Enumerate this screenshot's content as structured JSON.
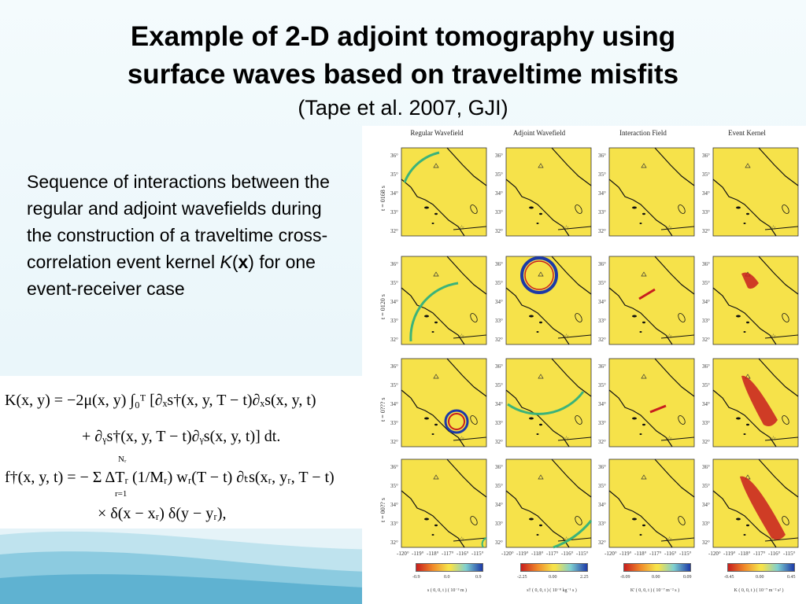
{
  "slide": {
    "title_line1": "Example of 2-D adjoint tomography using",
    "title_line2": "surface waves based on traveltime misfits",
    "subtitle": "(Tape et al. 2007, GJI)",
    "description": {
      "text": "Sequence of interactions between the regular and adjoint wavefields during the construction of a traveltime cross-correlation event kernel",
      "kernel_symbol": "K",
      "kernel_arg": "x",
      "text_end": " for one event-receiver case"
    }
  },
  "equations": {
    "eq1_line1": "K(x, y) = −2μ(x, y) ∫₀ᵀ [∂ₓs†(x, y, T − t)∂ₓs(x, y, t)",
    "eq1_line2": "+ ∂ᵧs†(x, y, T − t)∂ᵧs(x, y, t)] dt.",
    "eq2_line1": "f†(x, y, t) = − Σ ΔTᵣ (1/Mᵣ) wᵣ(T − t) ∂ₜs(xᵣ, yᵣ, T − t)",
    "eq2_sum_top": "Nᵣ",
    "eq2_sum_bottom": "r=1",
    "eq2_line2": "× δ(x − xᵣ) δ(y − yᵣ),"
  },
  "figure": {
    "columns": [
      "Regular Wavefield",
      "Adjoint Wavefield",
      "Interaction Field",
      "Event Kernel"
    ],
    "rows": [
      "t = 0168 s",
      "t = 0120 s",
      "t = 0??? s",
      "t = 00?? s"
    ],
    "lat_ticks": [
      "36°",
      "35°",
      "34°",
      "33°",
      "32°"
    ],
    "lon_ticks": [
      "-120°",
      "-119°",
      "-118°",
      "-117°",
      "-116°",
      "-115°"
    ],
    "colorbars": [
      {
        "ticks": [
          "-0.9",
          "0.0",
          "0.9"
        ],
        "label": "s ( 0, 0, t )  ( 10⁻³ m )"
      },
      {
        "ticks": [
          "-2.25",
          "0.00",
          "2.25"
        ],
        "label": "s† ( 0, 0, t )  ( 10⁻⁸ kg⁻¹ s )"
      },
      {
        "ticks": [
          "-0.09",
          "0.00",
          "0.09"
        ],
        "label": "K' ( 0, 0, t )  ( 10⁻⁷ m⁻² s )"
      },
      {
        "ticks": [
          "-0.45",
          "0.00",
          "0.45"
        ],
        "label": "K ( 0, 0, t )  ( 10⁻⁷ m⁻² s² )"
      }
    ],
    "colors": {
      "field": "#f6e24a",
      "positive": "#c81e1e",
      "negative": "#1c3aa8",
      "mid": "#3bb37a"
    }
  }
}
